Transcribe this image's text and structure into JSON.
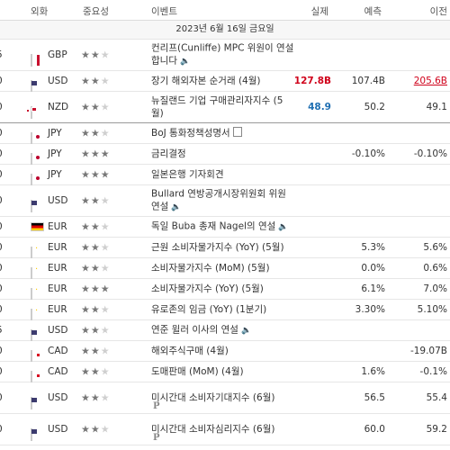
{
  "header": {
    "currency": "외화",
    "importance": "중요성",
    "event": "이벤트",
    "actual": "실제",
    "forecast": "예측",
    "previous": "이전"
  },
  "date_label": "2023년 6월 16일 금요일",
  "rows": [
    {
      "time": "5",
      "flag": "gbp",
      "cur": "GBP",
      "stars": 2,
      "event": "컨리프(Cunliffe) MPC 위원이 연설합니다",
      "icon": "speaker",
      "actual": "",
      "forecast": "",
      "previous": "",
      "h": 2
    },
    {
      "time": "0",
      "flag": "usd",
      "cur": "USD",
      "stars": 2,
      "event": "장기 해외자본 순거래 (4월)",
      "icon": "",
      "actual": "127.8B",
      "actual_color": "red",
      "forecast": "107.4B",
      "previous": "205.6B",
      "prev_color": "red",
      "h": 1
    },
    {
      "time": "0",
      "flag": "nzd",
      "cur": "NZD",
      "stars": 2,
      "event": "뉴질랜드 기업 구매관리자지수 (5월)",
      "icon": "",
      "actual": "48.9",
      "actual_color": "blue",
      "forecast": "50.2",
      "previous": "49.1",
      "h": 2,
      "thick": true
    },
    {
      "time": "0",
      "flag": "jpy",
      "cur": "JPY",
      "stars": 2,
      "event": "BoJ 통화정책성명서",
      "icon": "doc",
      "actual": "",
      "forecast": "",
      "previous": "",
      "h": 1
    },
    {
      "time": "0",
      "flag": "jpy",
      "cur": "JPY",
      "stars": 3,
      "event": "금리결정",
      "icon": "",
      "actual": "",
      "forecast": "-0.10%",
      "previous": "-0.10%",
      "h": 1
    },
    {
      "time": "0",
      "flag": "jpy",
      "cur": "JPY",
      "stars": 3,
      "event": "일본은행 기자회견",
      "icon": "",
      "actual": "",
      "forecast": "",
      "previous": "",
      "h": 1
    },
    {
      "time": "0",
      "flag": "usd",
      "cur": "USD",
      "stars": 2,
      "event": "Bullard 연방공개시장위원회 위원 연설",
      "icon": "speaker",
      "actual": "",
      "forecast": "",
      "previous": "",
      "h": 2
    },
    {
      "time": "0",
      "flag": "eur-de",
      "cur": "EUR",
      "stars": 2,
      "event": "독일 Buba 총재 Nagel의 연설",
      "icon": "speaker",
      "actual": "",
      "forecast": "",
      "previous": "",
      "h": 1
    },
    {
      "time": "0",
      "flag": "eur",
      "cur": "EUR",
      "stars": 2,
      "event": "근원 소비자물가지수 (YoY) (5월)",
      "icon": "",
      "actual": "",
      "forecast": "5.3%",
      "previous": "5.6%",
      "h": 1
    },
    {
      "time": "0",
      "flag": "eur",
      "cur": "EUR",
      "stars": 2,
      "event": "소비자물가지수 (MoM) (5월)",
      "icon": "",
      "actual": "",
      "forecast": "0.0%",
      "previous": "0.6%",
      "h": 1
    },
    {
      "time": "0",
      "flag": "eur",
      "cur": "EUR",
      "stars": 3,
      "event": "소비자물가지수 (YoY) (5월)",
      "icon": "",
      "actual": "",
      "forecast": "6.1%",
      "previous": "7.0%",
      "h": 1
    },
    {
      "time": "0",
      "flag": "eur",
      "cur": "EUR",
      "stars": 2,
      "event": "유로존의 임금 (YoY) (1분기)",
      "icon": "",
      "actual": "",
      "forecast": "3.30%",
      "previous": "5.10%",
      "h": 1
    },
    {
      "time": "5",
      "flag": "usd",
      "cur": "USD",
      "stars": 2,
      "event": "연준 윌러 이사의 연설",
      "icon": "speaker",
      "actual": "",
      "forecast": "",
      "previous": "",
      "h": 1
    },
    {
      "time": "0",
      "flag": "cad",
      "cur": "CAD",
      "stars": 2,
      "event": "해외주식구매 (4월)",
      "icon": "",
      "actual": "",
      "forecast": "",
      "previous": "-19.07B",
      "h": 1
    },
    {
      "time": "0",
      "flag": "cad",
      "cur": "CAD",
      "stars": 2,
      "event": "도매판매 (MoM) (4월)",
      "icon": "",
      "actual": "",
      "forecast": "1.6%",
      "previous": "-0.1%",
      "h": 1
    },
    {
      "time": "0",
      "flag": "usd",
      "cur": "USD",
      "stars": 2,
      "event": "미시간대 소비자기대지수 (6월)",
      "icon": "p",
      "actual": "",
      "forecast": "56.5",
      "previous": "55.4",
      "h": 2
    },
    {
      "time": "0",
      "flag": "usd",
      "cur": "USD",
      "stars": 2,
      "event": "미시간대 소비자심리지수 (6월)",
      "icon": "p",
      "actual": "",
      "forecast": "60.0",
      "previous": "59.2",
      "h": 2
    }
  ],
  "colors": {
    "red": "#d0021b",
    "blue": "#1f6fb2"
  }
}
